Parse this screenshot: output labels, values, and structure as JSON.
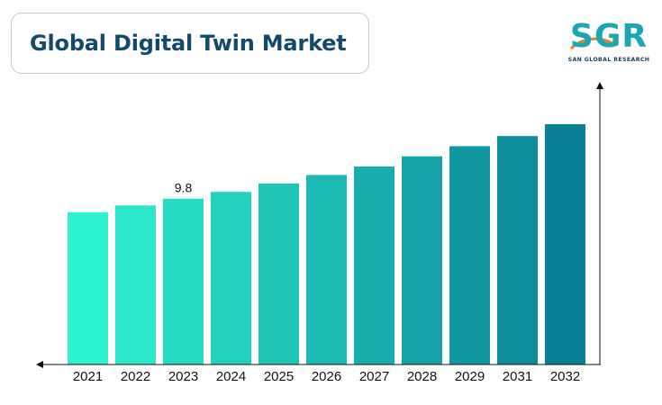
{
  "header": {
    "title": "Global Digital Twin Market"
  },
  "logo": {
    "wordmark": "SGR",
    "tagline": "SAN GLOBAL RESEARCH"
  },
  "colors": {
    "title": "#124a6c",
    "logo_text": "#1aa7b0",
    "logo_tagline": "#1d3c52",
    "logo_swoosh": "#f07b2a",
    "axis": "#111111",
    "bar_start": "#2ef3cf",
    "bar_end": "#0a8096"
  },
  "chart_data": {
    "type": "bar",
    "categories": [
      "2021",
      "2022",
      "2023",
      "2024",
      "2025",
      "2026",
      "2027",
      "2028",
      "2029",
      "2031",
      "2032"
    ],
    "values": [
      9.0,
      9.4,
      9.8,
      10.2,
      10.7,
      11.2,
      11.7,
      12.3,
      12.9,
      13.5,
      14.2
    ],
    "data_labels": [
      {
        "category": "2023",
        "text": "9.8"
      }
    ],
    "title": "Global Digital Twin Market",
    "xlabel": "",
    "ylabel": "",
    "ylim": [
      0,
      14.2
    ],
    "grid": false,
    "legend": "none"
  }
}
